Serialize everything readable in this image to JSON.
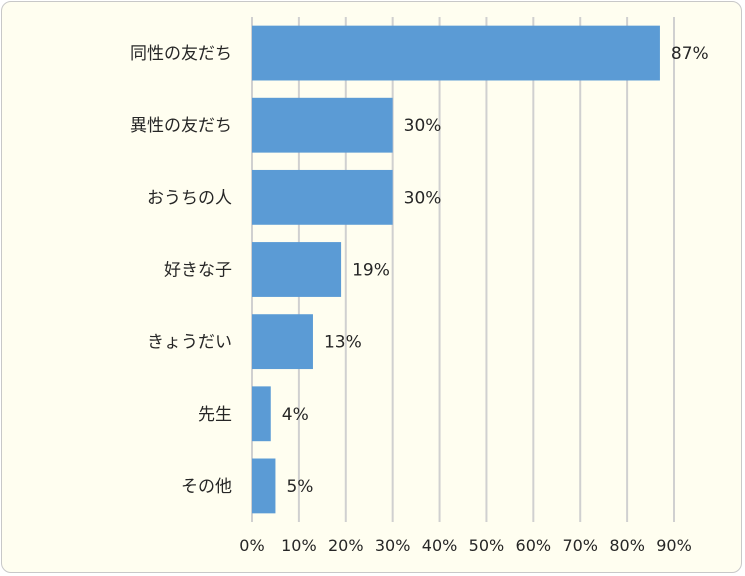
{
  "chart_data": {
    "type": "bar",
    "orientation": "horizontal",
    "categories": [
      "同性の友だち",
      "異性の友だち",
      "おうちの人",
      "好きな子",
      "きょうだい",
      "先生",
      "その他"
    ],
    "values": [
      87,
      30,
      30,
      19,
      13,
      4,
      5
    ],
    "data_labels": [
      "87%",
      "30%",
      "30%",
      "19%",
      "13%",
      "4%",
      "5%"
    ],
    "x_ticks": [
      0,
      10,
      20,
      30,
      40,
      50,
      60,
      70,
      80,
      90
    ],
    "x_tick_labels": [
      "0%",
      "10%",
      "20%",
      "30%",
      "40%",
      "50%",
      "60%",
      "70%",
      "80%",
      "90%"
    ],
    "xlim": [
      0,
      90
    ],
    "grid": "vertical",
    "legend": "none",
    "title": "",
    "xlabel": "",
    "ylabel": "",
    "bar_color": "#5b9bd5",
    "grid_color": "#d0d0d0",
    "background_color": "#fffef0"
  }
}
